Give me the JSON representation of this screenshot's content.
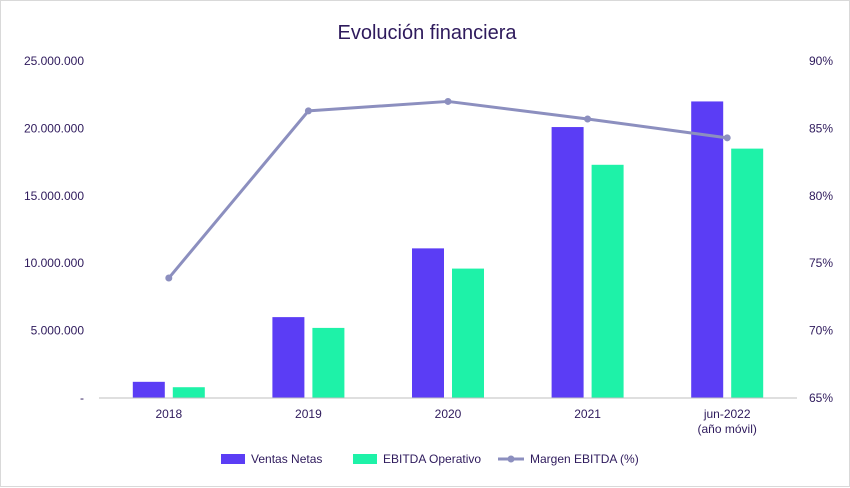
{
  "chart_data": {
    "type": "bar",
    "title": "Evolución financiera",
    "categories": [
      [
        "2018"
      ],
      [
        "2019"
      ],
      [
        "2020"
      ],
      [
        "2021"
      ],
      [
        "jun-2022",
        "(año móvil)"
      ]
    ],
    "series": [
      {
        "name": "Ventas Netas",
        "type": "bar",
        "axis": "left",
        "color": "#5b3df5",
        "values": [
          1200000,
          6000000,
          11100000,
          20100000,
          22000000
        ]
      },
      {
        "name": "EBITDA Operativo",
        "type": "bar",
        "axis": "left",
        "color": "#1ef2a8",
        "values": [
          800000,
          5200000,
          9600000,
          17300000,
          18500000
        ]
      },
      {
        "name": "Margen EBITDA (%)",
        "type": "line",
        "axis": "right",
        "color": "#8c8fbf",
        "values": [
          73.9,
          86.3,
          87.0,
          85.7,
          84.3
        ]
      }
    ],
    "yleft": {
      "min": 0,
      "max": 25000000,
      "ticks": [
        "-",
        "5.000.000",
        "10.000.000",
        "15.000.000",
        "20.000.000",
        "25.000.000"
      ]
    },
    "yright": {
      "min": 65,
      "max": 90,
      "ticks": [
        "65%",
        "70%",
        "75%",
        "80%",
        "85%",
        "90%"
      ]
    },
    "grid": false,
    "legend_position": "bottom"
  }
}
